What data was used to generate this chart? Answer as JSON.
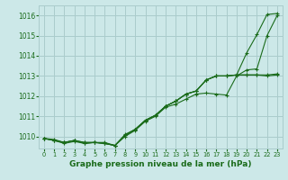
{
  "title": "Graphe pression niveau de la mer (hPa)",
  "bg_color": "#cce8e8",
  "grid_color": "#aacccc",
  "line_color": "#1a6b1a",
  "ylim": [
    1009.4,
    1016.5
  ],
  "xlim": [
    -0.5,
    23.5
  ],
  "yticks": [
    1010,
    1011,
    1012,
    1013,
    1014,
    1015,
    1016
  ],
  "xticks": [
    0,
    1,
    2,
    3,
    4,
    5,
    6,
    7,
    8,
    9,
    10,
    11,
    12,
    13,
    14,
    15,
    16,
    17,
    18,
    19,
    20,
    21,
    22,
    23
  ],
  "series": [
    [
      1009.9,
      1009.8,
      1009.7,
      1009.8,
      1009.7,
      1009.7,
      1009.7,
      1009.55,
      1010.05,
      1010.35,
      1010.8,
      1011.05,
      1011.5,
      1011.75,
      1012.1,
      1012.25,
      1012.8,
      1013.0,
      1013.0,
      1013.05,
      1014.15,
      1015.05,
      1016.05,
      1016.1
    ],
    [
      1009.9,
      1009.8,
      1009.65,
      1009.75,
      1009.65,
      1009.7,
      1009.65,
      1009.55,
      1010.0,
      1010.3,
      1010.75,
      1011.0,
      1011.45,
      1011.6,
      1011.85,
      1012.1,
      1012.15,
      1012.1,
      1012.05,
      1013.0,
      1013.3,
      1013.35,
      1015.0,
      1016.0
    ],
    [
      1009.9,
      1009.85,
      1009.7,
      1009.8,
      1009.7,
      1009.7,
      1009.65,
      1009.55,
      1010.1,
      1010.35,
      1010.8,
      1011.05,
      1011.5,
      1011.75,
      1012.1,
      1012.25,
      1012.8,
      1013.0,
      1013.0,
      1013.05,
      1013.05,
      1013.05,
      1013.05,
      1013.1
    ],
    [
      1009.9,
      1009.8,
      1009.7,
      1009.8,
      1009.65,
      1009.7,
      1009.65,
      1009.55,
      1010.05,
      1010.35,
      1010.8,
      1011.05,
      1011.5,
      1011.75,
      1012.1,
      1012.25,
      1012.8,
      1013.0,
      1013.0,
      1013.05,
      1013.05,
      1013.05,
      1013.0,
      1013.05
    ]
  ]
}
